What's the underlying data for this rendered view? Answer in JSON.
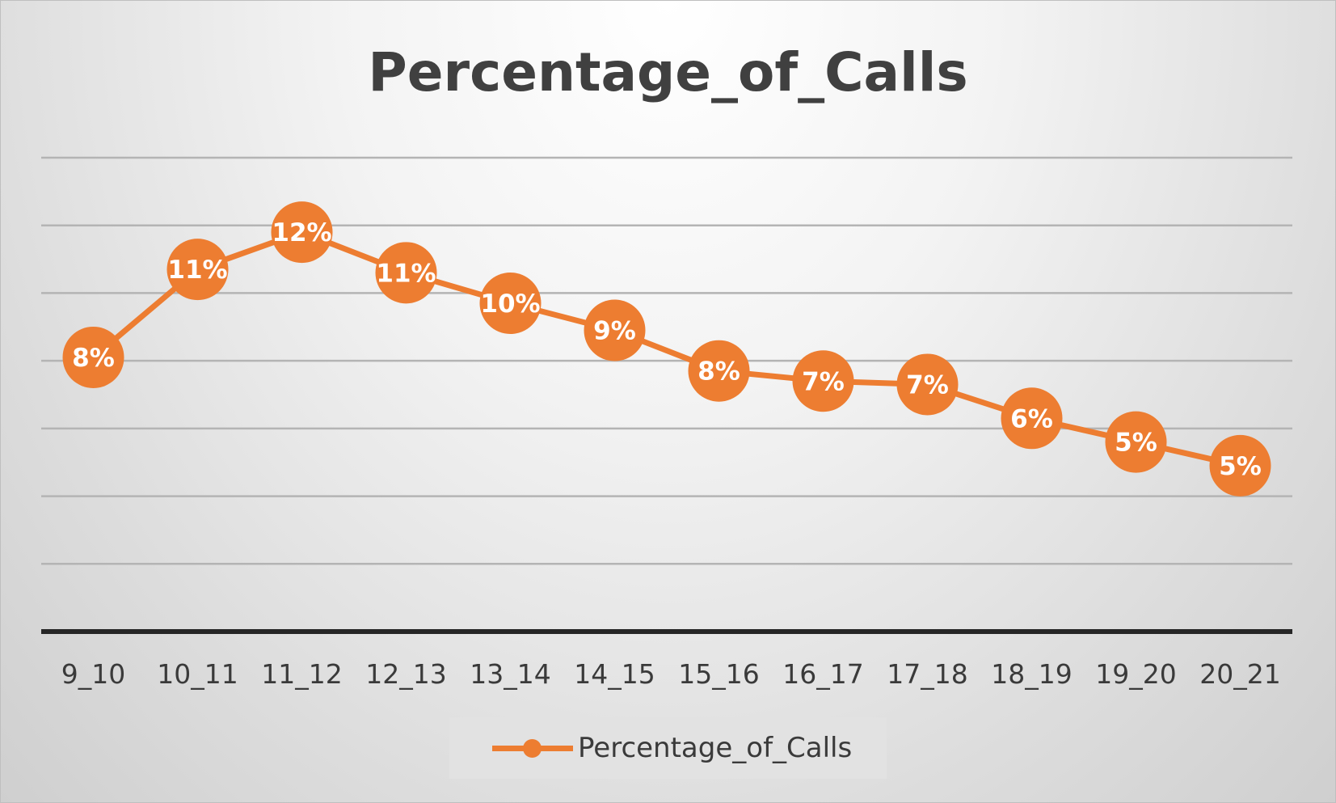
{
  "chart_data": {
    "type": "line",
    "title": "Percentage_of_Calls",
    "categories": [
      "9_10",
      "10_11",
      "11_12",
      "12_13",
      "13_14",
      "14_15",
      "15_16",
      "16_17",
      "17_18",
      "18_19",
      "19_20",
      "20_21"
    ],
    "series": [
      {
        "name": "Percentage_of_Calls",
        "values": [
          0.081,
          0.107,
          0.118,
          0.106,
          0.097,
          0.089,
          0.077,
          0.074,
          0.073,
          0.063,
          0.056,
          0.049
        ],
        "labels": [
          "8%",
          "11%",
          "12%",
          "11%",
          "10%",
          "9%",
          "8%",
          "7%",
          "7%",
          "6%",
          "5%",
          "5%"
        ],
        "color": "#ed7d31"
      }
    ],
    "ylim": [
      0,
      0.14
    ],
    "y_axis_visible": false,
    "grid": true,
    "legend_position": "bottom",
    "xlabel": "",
    "ylabel": ""
  }
}
